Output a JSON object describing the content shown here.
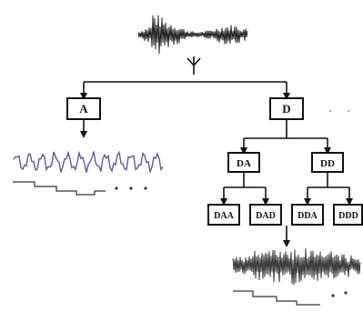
{
  "nodes": {
    "a": "A",
    "d": "D",
    "da": "DA",
    "dd": "DD",
    "daa": "DAA",
    "dad": "DAD",
    "dda": "DDA",
    "ddd": "DDD"
  },
  "colors": {
    "ink": "#111111",
    "waveform_a": "#5a5f8a",
    "background": "#ffffff"
  }
}
